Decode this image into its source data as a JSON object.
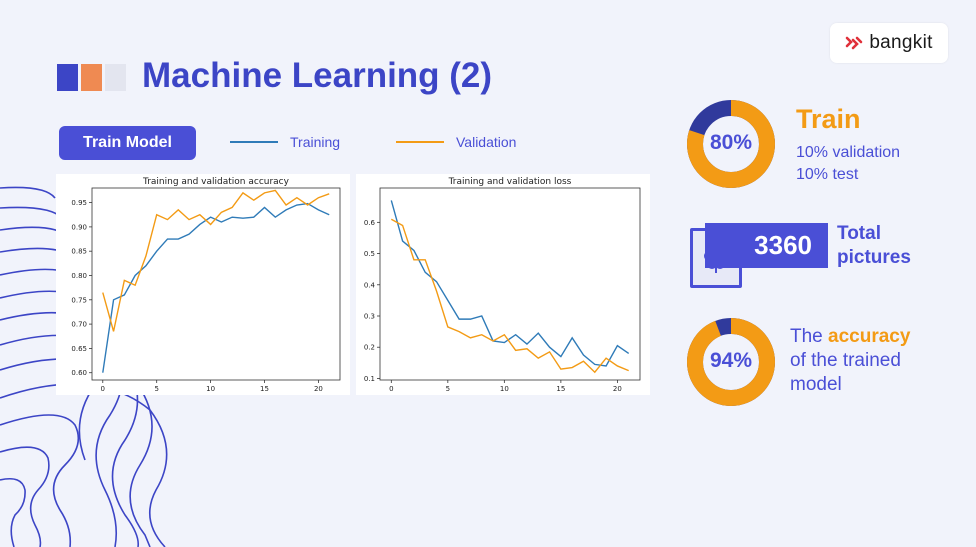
{
  "header": {
    "title": "Machine Learning (2)",
    "square_colors": [
      "#3c45c6",
      "#ef8a52",
      "#e3e5ef"
    ]
  },
  "logo": {
    "text": "bangkit",
    "icon": "bangkit-logo-icon"
  },
  "button": {
    "label": "Train Model"
  },
  "legend": [
    {
      "label": "Training",
      "color": "#2f7bb8"
    },
    {
      "label": "Validation",
      "color": "#f39b15"
    }
  ],
  "colors": {
    "accent": "#4a4fd6",
    "orange": "#f39b15",
    "dark_blue": "#303a9c"
  },
  "chart_data": [
    {
      "type": "line",
      "title": "Training and validation accuracy",
      "x_ticks": [
        0,
        5,
        10,
        15,
        20
      ],
      "y_ticks": [
        "0.60",
        "0.65",
        "0.70",
        "0.75",
        "0.80",
        "0.85",
        "0.90",
        "0.95"
      ],
      "xlim": [
        -1,
        22
      ],
      "ylim": [
        0.585,
        0.98
      ],
      "x": [
        0,
        1,
        2,
        3,
        4,
        5,
        6,
        7,
        8,
        9,
        10,
        11,
        12,
        13,
        14,
        15,
        16,
        17,
        18,
        19,
        20,
        21
      ],
      "series": [
        {
          "name": "Training",
          "color": "#2f7bb8",
          "values": [
            0.6,
            0.75,
            0.76,
            0.8,
            0.82,
            0.85,
            0.875,
            0.875,
            0.885,
            0.905,
            0.92,
            0.91,
            0.92,
            0.918,
            0.92,
            0.94,
            0.92,
            0.935,
            0.945,
            0.948,
            0.935,
            0.925
          ]
        },
        {
          "name": "Validation",
          "color": "#f39b15",
          "values": [
            0.765,
            0.685,
            0.79,
            0.78,
            0.84,
            0.925,
            0.915,
            0.935,
            0.915,
            0.925,
            0.905,
            0.93,
            0.94,
            0.97,
            0.955,
            0.97,
            0.975,
            0.945,
            0.96,
            0.945,
            0.96,
            0.968
          ]
        }
      ]
    },
    {
      "type": "line",
      "title": "Training and validation loss",
      "x_ticks": [
        0,
        5,
        10,
        15,
        20
      ],
      "y_ticks": [
        "0.1",
        "0.2",
        "0.3",
        "0.4",
        "0.5",
        "0.6"
      ],
      "xlim": [
        -1,
        22
      ],
      "ylim": [
        0.095,
        0.71
      ],
      "x": [
        0,
        1,
        2,
        3,
        4,
        5,
        6,
        7,
        8,
        9,
        10,
        11,
        12,
        13,
        14,
        15,
        16,
        17,
        18,
        19,
        20,
        21
      ],
      "series": [
        {
          "name": "Training",
          "color": "#2f7bb8",
          "values": [
            0.67,
            0.54,
            0.51,
            0.44,
            0.41,
            0.35,
            0.29,
            0.29,
            0.3,
            0.22,
            0.215,
            0.24,
            0.21,
            0.245,
            0.2,
            0.17,
            0.23,
            0.175,
            0.145,
            0.14,
            0.205,
            0.18
          ]
        },
        {
          "name": "Validation",
          "color": "#f39b15",
          "values": [
            0.61,
            0.59,
            0.48,
            0.48,
            0.38,
            0.265,
            0.25,
            0.23,
            0.24,
            0.22,
            0.24,
            0.19,
            0.195,
            0.165,
            0.185,
            0.13,
            0.135,
            0.155,
            0.12,
            0.165,
            0.14,
            0.125
          ]
        }
      ]
    }
  ],
  "stats": {
    "train": {
      "percent": 80,
      "percent_label": "80%",
      "title": "Train",
      "line1": "10% validation",
      "line2": "10% test"
    },
    "pictures": {
      "count": "3360",
      "label_line1": "Total",
      "label_line2": "pictures",
      "icon": "flower-image-icon"
    },
    "accuracy": {
      "percent": 94,
      "percent_label": "94%",
      "prefix": "The",
      "highlight": "accuracy",
      "line2": "of the trained",
      "line3": "model"
    }
  }
}
